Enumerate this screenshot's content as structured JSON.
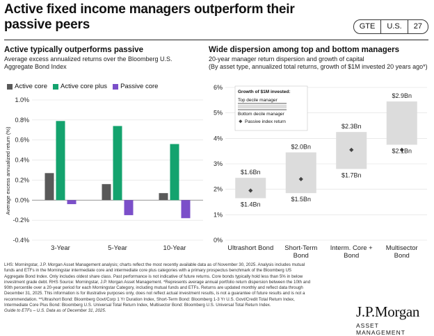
{
  "header": {
    "title_line1": "Active fixed income managers outperform their",
    "title_line2": "passive peers",
    "badges": [
      "GTE",
      "U.S.",
      "27"
    ]
  },
  "left_panel": {
    "title": "Active typically outperforms passive",
    "subtitle_line1": "Average excess annualized returns over the Bloomberg U.S.",
    "subtitle_line2": "Aggregate Bond Index"
  },
  "right_panel": {
    "title": "Wide dispersion among top and bottom managers",
    "subtitle_line1": "20-year manager return dispersion and growth of capital",
    "subtitle_line2": "(By asset type, annualized total returns, growth of $1M invested 20 years ago*)"
  },
  "chart_data": [
    {
      "type": "bar",
      "ylabel": "Average excess annualized return (%)",
      "ylim": [
        -0.4,
        1.0
      ],
      "yticks": [
        -0.4,
        -0.2,
        0.0,
        0.2,
        0.4,
        0.6,
        0.8,
        1.0
      ],
      "ytick_labels": [
        "-0.4%",
        "-0.2%",
        "0.0%",
        "0.2%",
        "0.4%",
        "0.6%",
        "0.8%",
        "1.0%"
      ],
      "categories": [
        "3-Year",
        "5-Year",
        "10-Year"
      ],
      "legend_position": "top-left",
      "series": [
        {
          "name": "Active core",
          "color": "#595959",
          "values": [
            0.27,
            0.16,
            0.07
          ]
        },
        {
          "name": "Active core plus",
          "color": "#14A36E",
          "values": [
            0.79,
            0.74,
            0.56
          ]
        },
        {
          "name": "Passive core",
          "color": "#7B4FC9",
          "values": [
            -0.04,
            -0.15,
            -0.18
          ]
        }
      ]
    },
    {
      "type": "range",
      "ylim": [
        0,
        6
      ],
      "yticks": [
        0,
        1,
        2,
        3,
        4,
        5,
        6
      ],
      "ytick_labels": [
        "0%",
        "1%",
        "2%",
        "3%",
        "4%",
        "5%",
        "6%"
      ],
      "categories": [
        [
          "Ultrashort Bond"
        ],
        [
          "Short-Term",
          "Bond"
        ],
        [
          "Interm. Core +",
          "Bond"
        ],
        [
          "Multisector",
          "Bond"
        ]
      ],
      "top_decile": [
        2.45,
        3.45,
        4.25,
        5.45
      ],
      "bottom_decile": [
        1.65,
        1.85,
        2.8,
        3.75
      ],
      "passive_index": [
        1.95,
        2.4,
        3.55,
        3.55
      ],
      "top_labels": [
        "$1.6Bn",
        "$2.0Bn",
        "$2.3Bn",
        "$2.9Bn"
      ],
      "bottom_labels": [
        "$1.4Bn",
        "$1.5Bn",
        "$1.7Bn",
        "$2.1Bn"
      ],
      "box_color": "#DCDCDC",
      "marker_color": "#444444",
      "legend": {
        "title": "Growth of $1M invested:",
        "top": "Top decile manager",
        "bottom": "Bottom decile manager",
        "passive": "Passive index return"
      }
    }
  ],
  "footnote": {
    "lines": [
      "LHS: Morningstar, J.P. Morgan Asset Management analysis; charts reflect the most recently available data as of November 30, 2025. Analysis includes mutual",
      "funds and ETFs in the Morningstar intermediate core and intermediate core plus categories with a primary prospectus benchmark of the Bloomberg US",
      "Aggregate Bond Index. Only includes oldest share class. Past performance is not indicative of future returns. Core bonds typically hold less than 5% in below",
      "investment grade debt. RHS Source: Morningstar, J.P. Morgan Asset Management. *Represents average annual portfolio return dispersion between the 10th and",
      "90th percentile over a 20-year period for each Morningstar Category, including mutual funds and ETFs. Returns are updated monthly and reflect data through",
      "December 31, 2025. This information is for illustrative purposes only, does not reflect actual investment results, is not a guarantee of future results and is not a",
      "recommendation. **Ultrashort Bond: Bloomberg Govt/Corp 1 Yr Duration Index, Short-Term Bond: Bloomberg 1-3 Yr U.S. Govt/Credit Total Return Index,",
      "Intermediate Core Plus Bond: Bloomberg U.S. Universal Total Return Index, Multisector Bond: Bloomberg U.S. Universal Total Return Index."
    ],
    "source": "Guide to ETFs – U.S. Data as of December 31, 2025."
  },
  "logo": {
    "brand": "J.P.Morgan",
    "sub": "ASSET MANAGEMENT"
  }
}
